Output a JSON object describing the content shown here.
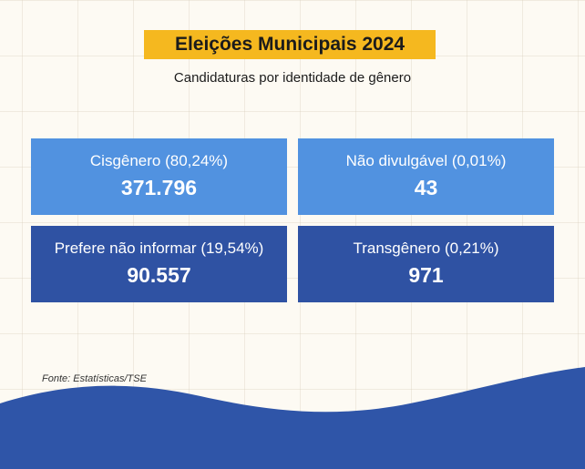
{
  "header": {
    "title": "Eleições Municipais 2024",
    "subtitle": "Candidaturas por identidade de gênero"
  },
  "cards": [
    {
      "label": "Cisgênero (80,24%)",
      "value": "371.796",
      "color": "#5192e0"
    },
    {
      "label": "Não divulgável (0,01%)",
      "value": "43",
      "color": "#5192e0"
    },
    {
      "label": "Prefere não informar (19,54%)",
      "value": "90.557",
      "color": "#2f52a3"
    },
    {
      "label": "Transgênero (0,21%)",
      "value": "971",
      "color": "#2f52a3"
    }
  ],
  "footer": {
    "source": "Fonte: Estatísticas/TSE"
  },
  "colors": {
    "background": "#fdfaf3",
    "title_highlight": "#f5b81f",
    "card_light": "#5192e0",
    "card_dark": "#2f52a3",
    "wave": "#2f55a8"
  }
}
